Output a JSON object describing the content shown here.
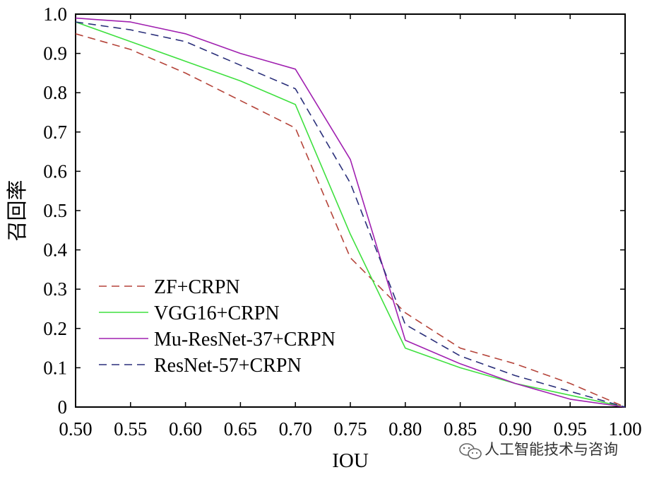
{
  "chart_data": {
    "type": "line",
    "title": "",
    "xlabel": "IOU",
    "ylabel": "召回率",
    "xlim": [
      0.5,
      1.0
    ],
    "ylim": [
      0,
      1.0
    ],
    "grid": false,
    "legend_position": "bottom-left",
    "x_tick_labels": [
      "0.50",
      "0.55",
      "0.60",
      "0.65",
      "0.70",
      "0.75",
      "0.80",
      "0.85",
      "0.90",
      "0.95",
      "1.00"
    ],
    "y_tick_labels": [
      "0",
      "0.1",
      "0.2",
      "0.3",
      "0.4",
      "0.5",
      "0.6",
      "0.7",
      "0.8",
      "0.9",
      "1.0"
    ],
    "series": [
      {
        "name": "ZF+CRPN",
        "color": "#b5443a",
        "style": "dashed",
        "x": [
          0.5,
          0.55,
          0.6,
          0.65,
          0.7,
          0.75,
          0.8,
          0.85,
          0.9,
          0.95,
          1.0
        ],
        "y": [
          0.95,
          0.91,
          0.85,
          0.78,
          0.71,
          0.38,
          0.24,
          0.15,
          0.11,
          0.06,
          0.0
        ]
      },
      {
        "name": "VGG16+CRPN",
        "color": "#3fe03f",
        "style": "solid",
        "x": [
          0.5,
          0.55,
          0.6,
          0.65,
          0.7,
          0.75,
          0.8,
          0.85,
          0.9,
          0.95,
          1.0
        ],
        "y": [
          0.98,
          0.93,
          0.88,
          0.83,
          0.77,
          0.44,
          0.15,
          0.1,
          0.06,
          0.03,
          0.0
        ]
      },
      {
        "name": "Mu-ResNet-37+CRPN",
        "color": "#a020b0",
        "style": "solid",
        "x": [
          0.5,
          0.55,
          0.6,
          0.65,
          0.7,
          0.75,
          0.8,
          0.85,
          0.9,
          0.95,
          1.0
        ],
        "y": [
          0.99,
          0.98,
          0.95,
          0.9,
          0.86,
          0.63,
          0.17,
          0.11,
          0.06,
          0.02,
          0.0
        ]
      },
      {
        "name": "ResNet-57+CRPN",
        "color": "#2a2f7a",
        "style": "dashed",
        "x": [
          0.5,
          0.55,
          0.6,
          0.65,
          0.7,
          0.75,
          0.8,
          0.85,
          0.9,
          0.95,
          1.0
        ],
        "y": [
          0.98,
          0.96,
          0.93,
          0.87,
          0.81,
          0.57,
          0.21,
          0.13,
          0.08,
          0.04,
          0.0
        ]
      }
    ]
  },
  "watermark": {
    "icon": "wechat-icon",
    "text": "人工智能技术与咨询"
  }
}
